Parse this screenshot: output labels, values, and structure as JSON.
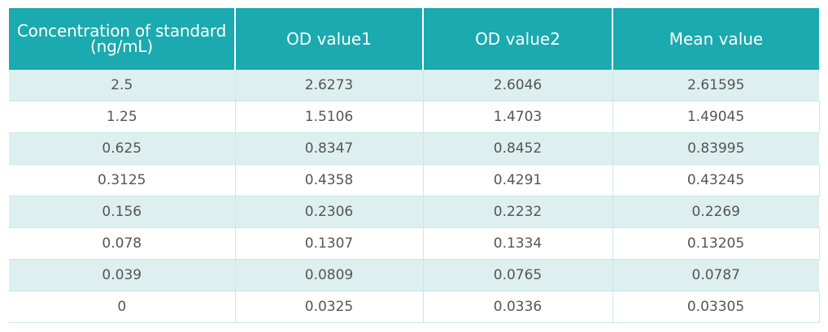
{
  "table": {
    "headers": [
      "Concentration of standard\n(ng/mL)",
      "OD value1",
      "OD value2",
      "Mean value"
    ],
    "header_line1": "Concentration of standard",
    "header_line2": "(ng/mL)",
    "rows": [
      [
        "2.5",
        "2.6273",
        "2.6046",
        "2.61595"
      ],
      [
        "1.25",
        "1.5106",
        "1.4703",
        "1.49045"
      ],
      [
        "0.625",
        "0.8347",
        "0.8452",
        "0.83995"
      ],
      [
        "0.3125",
        "0.4358",
        "0.4291",
        "0.43245"
      ],
      [
        "0.156",
        "0.2306",
        "0.2232",
        "0.2269"
      ],
      [
        "0.078",
        "0.1307",
        "0.1334",
        "0.13205"
      ],
      [
        "0.039",
        "0.0809",
        "0.0765",
        "0.0787"
      ],
      [
        "0",
        "0.0325",
        "0.0336",
        "0.03305"
      ]
    ]
  },
  "colors": {
    "header_bg": "#1aaaaf",
    "header_text": "#ffffff",
    "stripe_bg": "#ddf0ef",
    "cell_text": "#555555",
    "grid_line": "#c9e7e6"
  }
}
